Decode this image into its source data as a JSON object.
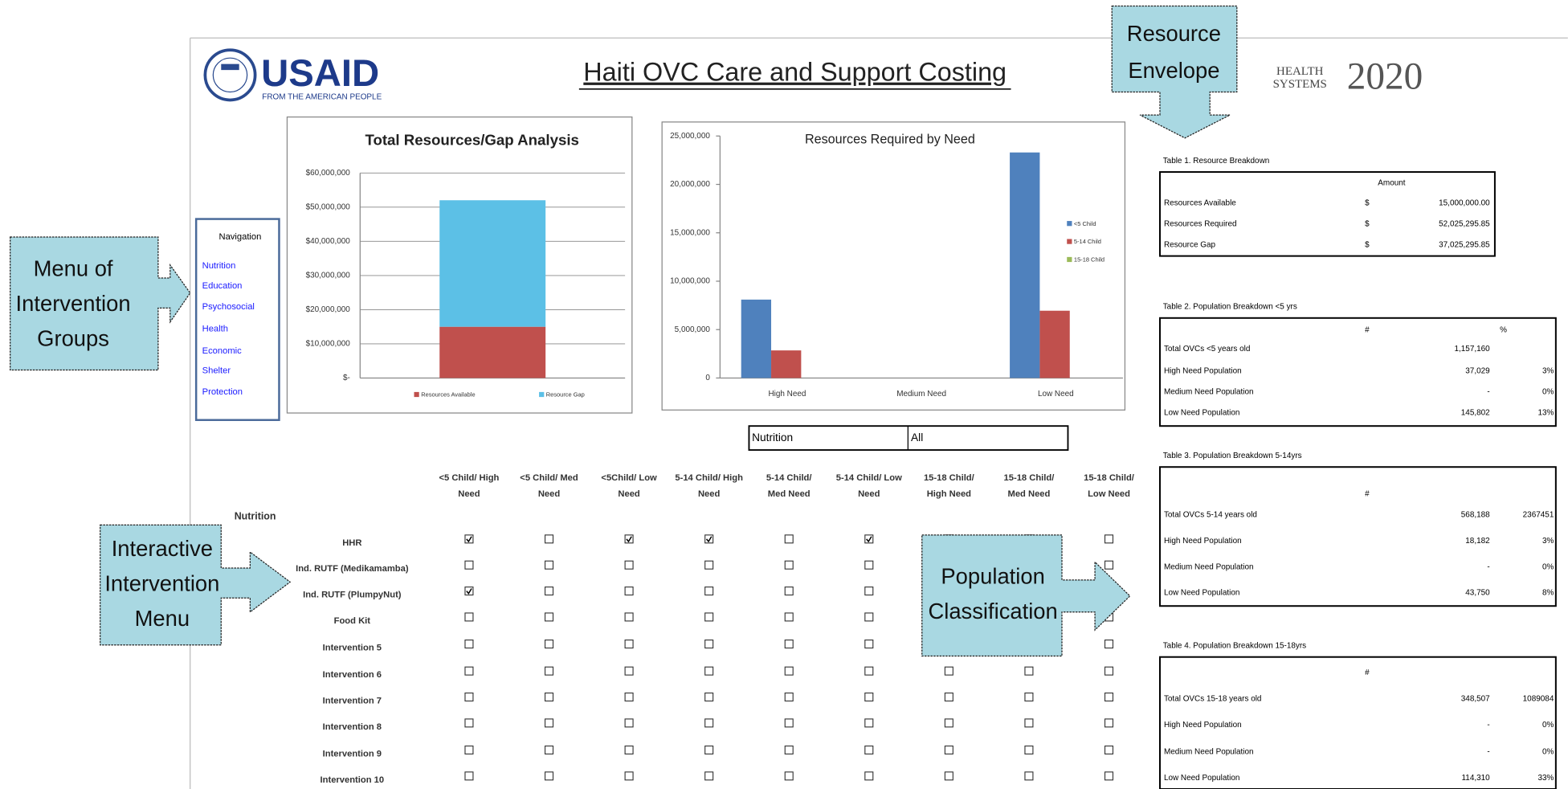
{
  "header": {
    "logo": "USAID",
    "tagline": "FROM THE AMERICAN PEOPLE",
    "title": "Haiti OVC Care and Support Costing",
    "partner_logo": [
      "HEALTH",
      "SYSTEMS",
      "2020"
    ]
  },
  "callouts": [
    {
      "lines": [
        "Resource",
        "Envelope"
      ]
    },
    {
      "lines": [
        "Menu of",
        "Intervention",
        "Groups"
      ]
    },
    {
      "lines": [
        "Interactive",
        "Intervention",
        "Menu"
      ]
    },
    {
      "lines": [
        "Population",
        "Classification"
      ]
    }
  ],
  "navigation": {
    "title": "Navigation",
    "items": [
      "Nutrition",
      "Education",
      "Psychosocial",
      "Health",
      "Economic",
      "Shelter",
      "Protection"
    ]
  },
  "chart_data": [
    {
      "type": "stacked_bar",
      "title": "Total Resources/Gap Analysis",
      "categories": [
        null
      ],
      "series": [
        {
          "name": "Resources Available",
          "color": "#c0504d",
          "values": [
            15000000
          ]
        },
        {
          "name": "Resource Gap",
          "color": "#5cc0e6",
          "values": [
            37025295.85
          ]
        }
      ],
      "ylim": [
        0,
        60000000
      ],
      "yticks": [
        {
          "value": 0,
          "label": "$-"
        },
        {
          "value": 10000000,
          "label": "$10,000,000"
        },
        {
          "value": 20000000,
          "label": "$20,000,000"
        },
        {
          "value": 30000000,
          "label": "$30,000,000"
        },
        {
          "value": 40000000,
          "label": "$40,000,000"
        },
        {
          "value": 50000000,
          "label": "$50,000,000"
        },
        {
          "value": 60000000,
          "label": "$60,000,000"
        }
      ],
      "grid": true
    },
    {
      "type": "grouped_bar",
      "title": "Resources Required by Need",
      "categories": [
        "High Need",
        "Medium Need",
        "Low Need"
      ],
      "series": [
        {
          "name": "<5 Child",
          "color": "#4f81bd",
          "values": [
            8100000,
            0,
            23300000
          ]
        },
        {
          "name": "5-14 Child",
          "color": "#c0504d",
          "values": [
            2850000,
            0,
            6950000
          ]
        },
        {
          "name": "15-18 Child",
          "color": "#9bbb59",
          "values": [
            0,
            0,
            0
          ]
        }
      ],
      "ylim": [
        0,
        25000000
      ],
      "yticks": [
        0,
        {
          "value": 5000000,
          "label": "5,000,000"
        },
        {
          "value": 10000000,
          "label": "10,000,000"
        },
        {
          "value": 15000000,
          "label": "15,000,000"
        },
        {
          "value": 20000000,
          "label": "20,000,000"
        },
        {
          "value": 25000000,
          "label": "25,000,000"
        }
      ],
      "grid": false
    }
  ],
  "selector": [
    "Nutrition",
    "All"
  ],
  "grid": {
    "section": "Nutrition",
    "columns": [
      [
        "<5 Child/  High",
        "Need"
      ],
      [
        "<5 Child/  Med",
        "Need"
      ],
      [
        "<5Child/  Low",
        "Need"
      ],
      [
        "5-14 Child/ High",
        "Need"
      ],
      [
        "5-14  Child/",
        "Med Need"
      ],
      [
        "5-14 Child/  Low",
        "Need"
      ],
      [
        "15-18 Child/",
        "High Need"
      ],
      [
        "15-18 Child/",
        "Med Need"
      ],
      [
        "15-18 Child/",
        "Low Need"
      ]
    ],
    "rows": [
      {
        "label": "HHR",
        "checked": [
          true,
          false,
          true,
          true,
          false,
          true,
          false,
          false,
          false
        ]
      },
      {
        "label": "Ind. RUTF (Medikamamba)",
        "checked": [
          false,
          false,
          false,
          false,
          false,
          false,
          false,
          false,
          false
        ]
      },
      {
        "label": "Ind. RUTF (PlumpyNut)",
        "checked": [
          true,
          false,
          false,
          false,
          false,
          false,
          false,
          false,
          false
        ]
      },
      {
        "label": "Food Kit",
        "checked": [
          false,
          false,
          false,
          false,
          false,
          false,
          false,
          false,
          false
        ]
      },
      {
        "label": "Intervention 5",
        "checked": [
          false,
          false,
          false,
          false,
          false,
          false,
          false,
          false,
          false
        ]
      },
      {
        "label": "Intervention 6",
        "checked": [
          false,
          false,
          false,
          false,
          false,
          false,
          false,
          false,
          false
        ]
      },
      {
        "label": "Intervention 7",
        "checked": [
          false,
          false,
          false,
          false,
          false,
          false,
          false,
          false,
          false
        ]
      },
      {
        "label": "Intervention 8",
        "checked": [
          false,
          false,
          false,
          false,
          false,
          false,
          false,
          false,
          false
        ]
      },
      {
        "label": "Intervention 9",
        "checked": [
          false,
          false,
          false,
          false,
          false,
          false,
          false,
          false,
          false
        ]
      },
      {
        "label": "Intervention 10",
        "checked": [
          false,
          false,
          false,
          false,
          false,
          false,
          false,
          false,
          false
        ]
      }
    ]
  },
  "tables": [
    {
      "title": "Table 1. Resource Breakdown",
      "headers": [
        "Amount"
      ],
      "rows": [
        [
          "Resources Available",
          "$",
          "15,000,000.00"
        ],
        [
          "Resources Required",
          "$",
          "52,025,295.85"
        ],
        [
          "Resource Gap",
          "$",
          "37,025,295.85"
        ]
      ]
    },
    {
      "title": "Table 2. Population Breakdown <5 yrs",
      "headers": [
        "#",
        "%"
      ],
      "rows": [
        [
          "Total OVCs <5 years old",
          "1,157,160"
        ],
        [
          "High Need Population",
          "37,029",
          "3%"
        ],
        [
          "Medium Need Population",
          "-",
          "0%"
        ],
        [
          "Low Need Population",
          "145,802",
          "13%"
        ]
      ]
    },
    {
      "title": "Table 3. Population Breakdown  5-14yrs",
      "headers": [
        "#"
      ],
      "rows": [
        [
          "Total OVCs 5-14 years old",
          "568,188",
          "2367451"
        ],
        [
          "High Need Population",
          "18,182",
          "3%"
        ],
        [
          "Medium Need Population",
          "-",
          "0%"
        ],
        [
          "Low Need Population",
          "43,750",
          "8%"
        ]
      ]
    },
    {
      "title": "Table 4. Population Breakdown 15-18yrs",
      "headers": [
        "#"
      ],
      "rows": [
        [
          "Total OVCs 15-18 years old",
          "348,507",
          "1089084"
        ],
        [
          "High Need Population",
          "-",
          "0%"
        ],
        [
          "Medium Need Population",
          "-",
          "0%"
        ],
        [
          "Low Need Population",
          "114,310",
          "33%"
        ]
      ]
    }
  ]
}
